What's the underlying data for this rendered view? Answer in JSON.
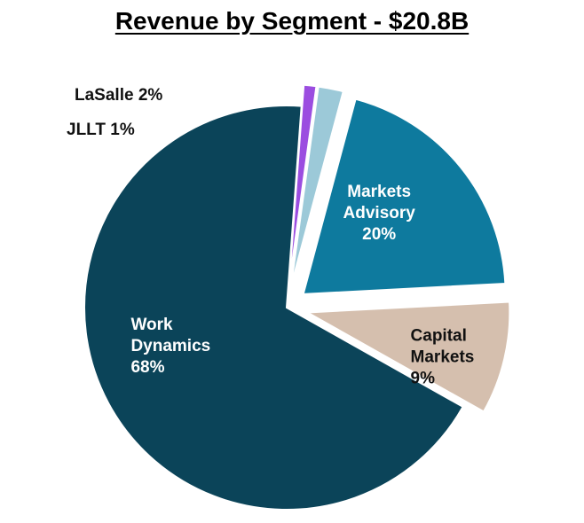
{
  "chart_data": {
    "type": "pie",
    "title": "Revenue by Segment - $20.8B",
    "slices": [
      {
        "name": "Markets Advisory",
        "label_lines": [
          "Markets",
          "Advisory"
        ],
        "value": 20,
        "value_label": "20%",
        "color": "#0e7a9e",
        "label_color": "#ffffff",
        "exploded": true,
        "label_inside": true
      },
      {
        "name": "Capital Markets",
        "label_lines": [
          "Capital",
          "Markets"
        ],
        "value": 9,
        "value_label": "9%",
        "color": "#d5bfae",
        "label_color": "#111111",
        "exploded": true,
        "label_inside": true
      },
      {
        "name": "Work Dynamics",
        "label_lines": [
          "Work",
          "Dynamics"
        ],
        "value": 68,
        "value_label": "68%",
        "color": "#0b4459",
        "label_color": "#ffffff",
        "exploded": false,
        "label_inside": true
      },
      {
        "name": "JLLT",
        "label_lines": [
          "JLLT 1%"
        ],
        "value": 1,
        "value_label": "",
        "color": "#9b4de0",
        "label_color": "#111111",
        "exploded": true,
        "label_inside": false
      },
      {
        "name": "LaSalle",
        "label_lines": [
          "LaSalle 2%"
        ],
        "value": 2,
        "value_label": "",
        "color": "#9cc9d8",
        "label_color": "#111111",
        "exploded": true,
        "label_inside": false
      }
    ]
  }
}
